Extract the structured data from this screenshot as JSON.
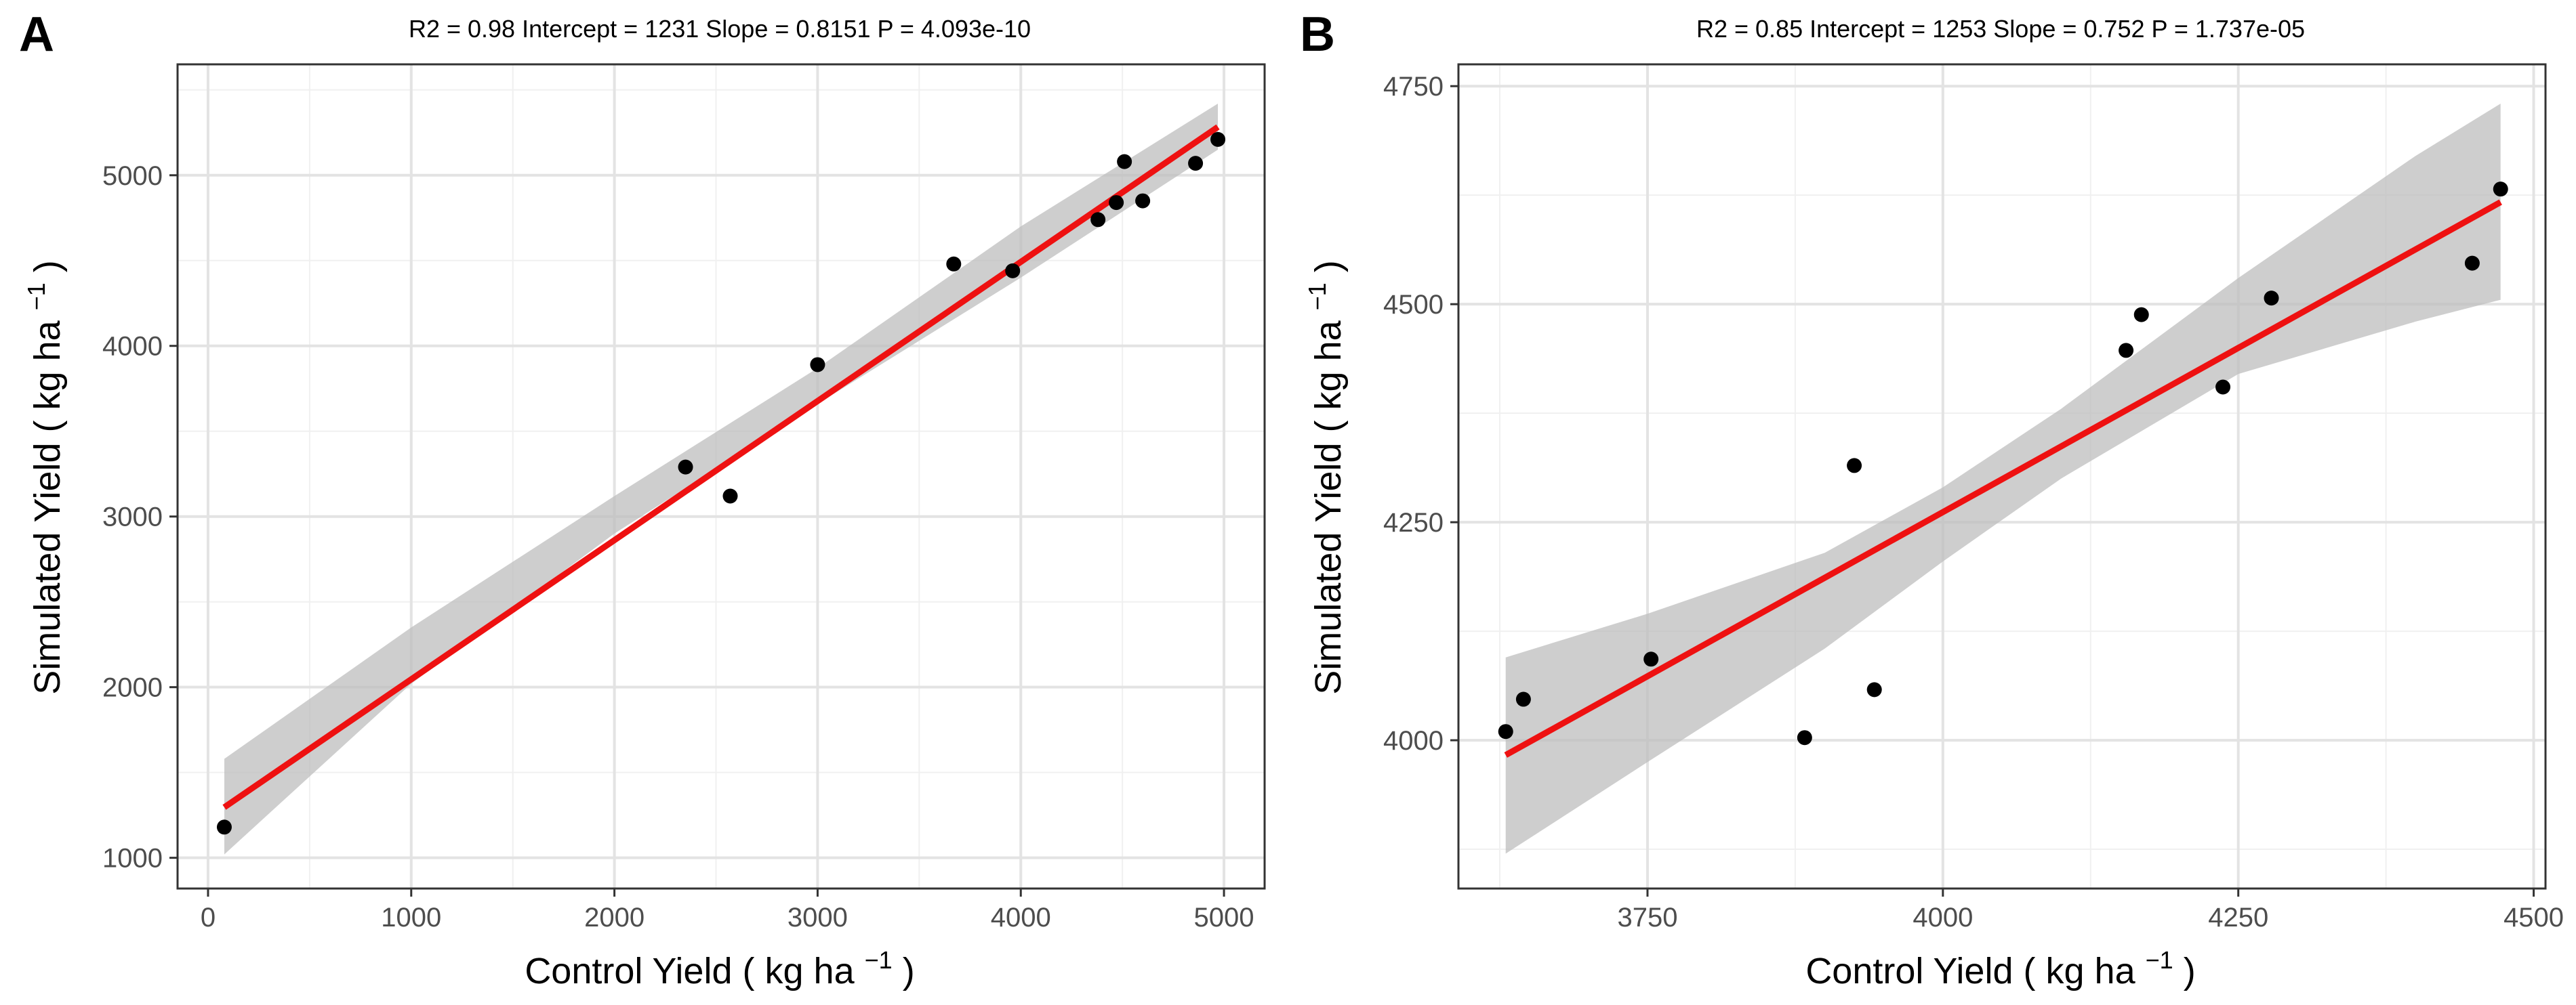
{
  "chart_data": [
    {
      "panel": "A",
      "type": "scatter",
      "stats_label": "R2 =  0.98 Intercept = 1231  Slope = 0.8151  P = 4.093e-10",
      "xlabel": "Control Yield",
      "ylabel": "Simulated Yield",
      "unit_text": "kg ha",
      "unit_sup": "−1",
      "xlim": [
        -150,
        5200
      ],
      "ylim": [
        820,
        5650
      ],
      "x_ticks": [
        0,
        1000,
        2000,
        3000,
        4000,
        5000
      ],
      "x_tick_labels": [
        "0",
        "1000",
        "2000",
        "3000",
        "4000",
        "5000"
      ],
      "x_minor": [
        500,
        1500,
        2500,
        3500,
        4500
      ],
      "y_ticks": [
        1000,
        2000,
        3000,
        4000,
        5000
      ],
      "y_tick_labels": [
        "1000",
        "2000",
        "3000",
        "4000",
        "5000"
      ],
      "y_minor": [
        1500,
        2500,
        3500,
        4500,
        5500
      ],
      "points": {
        "x": [
          80,
          2350,
          2570,
          3000,
          3670,
          3960,
          4380,
          4470,
          4510,
          4600,
          4860,
          4970
        ],
        "y": [
          1180,
          3290,
          3120,
          3890,
          4480,
          4440,
          4740,
          4840,
          5080,
          4850,
          5070,
          5210
        ]
      },
      "fit_line": {
        "x": [
          80,
          4970
        ],
        "y": [
          1296,
          5283
        ],
        "color": "#ee1111"
      },
      "confidence_band": {
        "x": [
          80,
          1000,
          2000,
          3000,
          4000,
          4970
        ],
        "lower": [
          1020,
          2020,
          2900,
          3660,
          4400,
          5150
        ],
        "upper": [
          1580,
          2350,
          3120,
          3870,
          4700,
          5420
        ],
        "color": "#bdbdbd"
      }
    },
    {
      "panel": "B",
      "type": "scatter",
      "stats_label": "R2 =  0.85 Intercept = 1253  Slope = 0.752  P = 1.737e-05",
      "xlabel": "Control Yield",
      "ylabel": "Simulated Yield",
      "unit_text": "kg ha",
      "unit_sup": "−1",
      "xlim": [
        3590,
        4510
      ],
      "ylim": [
        3830,
        4775
      ],
      "x_ticks": [
        3750,
        4000,
        4250,
        4500
      ],
      "x_tick_labels": [
        "3750",
        "4000",
        "4250",
        "4500"
      ],
      "x_minor": [
        3625,
        3875,
        4125,
        4375
      ],
      "y_ticks": [
        4000,
        4250,
        4500,
        4750
      ],
      "y_tick_labels": [
        "4000",
        "4250",
        "4500",
        "4750"
      ],
      "y_minor": [
        3875,
        4125,
        4375,
        4625
      ],
      "points": {
        "x": [
          3630,
          3645,
          3753,
          3883,
          3925,
          3942,
          4155,
          4168,
          4237,
          4278,
          4448,
          4472
        ],
        "y": [
          4010,
          4047,
          4093,
          4003,
          4315,
          4058,
          4447,
          4488,
          4405,
          4507,
          4547,
          4632
        ]
      },
      "fit_line": {
        "x": [
          3630,
          4472
        ],
        "y": [
          3983,
          4617
        ],
        "color": "#ee1111"
      },
      "confidence_band": {
        "x": [
          3630,
          3750,
          3900,
          4000,
          4100,
          4250,
          4400,
          4472
        ],
        "lower": [
          3870,
          3975,
          4105,
          4205,
          4300,
          4420,
          4480,
          4505
        ],
        "upper": [
          4095,
          4145,
          4215,
          4290,
          4380,
          4530,
          4670,
          4730
        ],
        "color": "#bdbdbd"
      }
    }
  ]
}
